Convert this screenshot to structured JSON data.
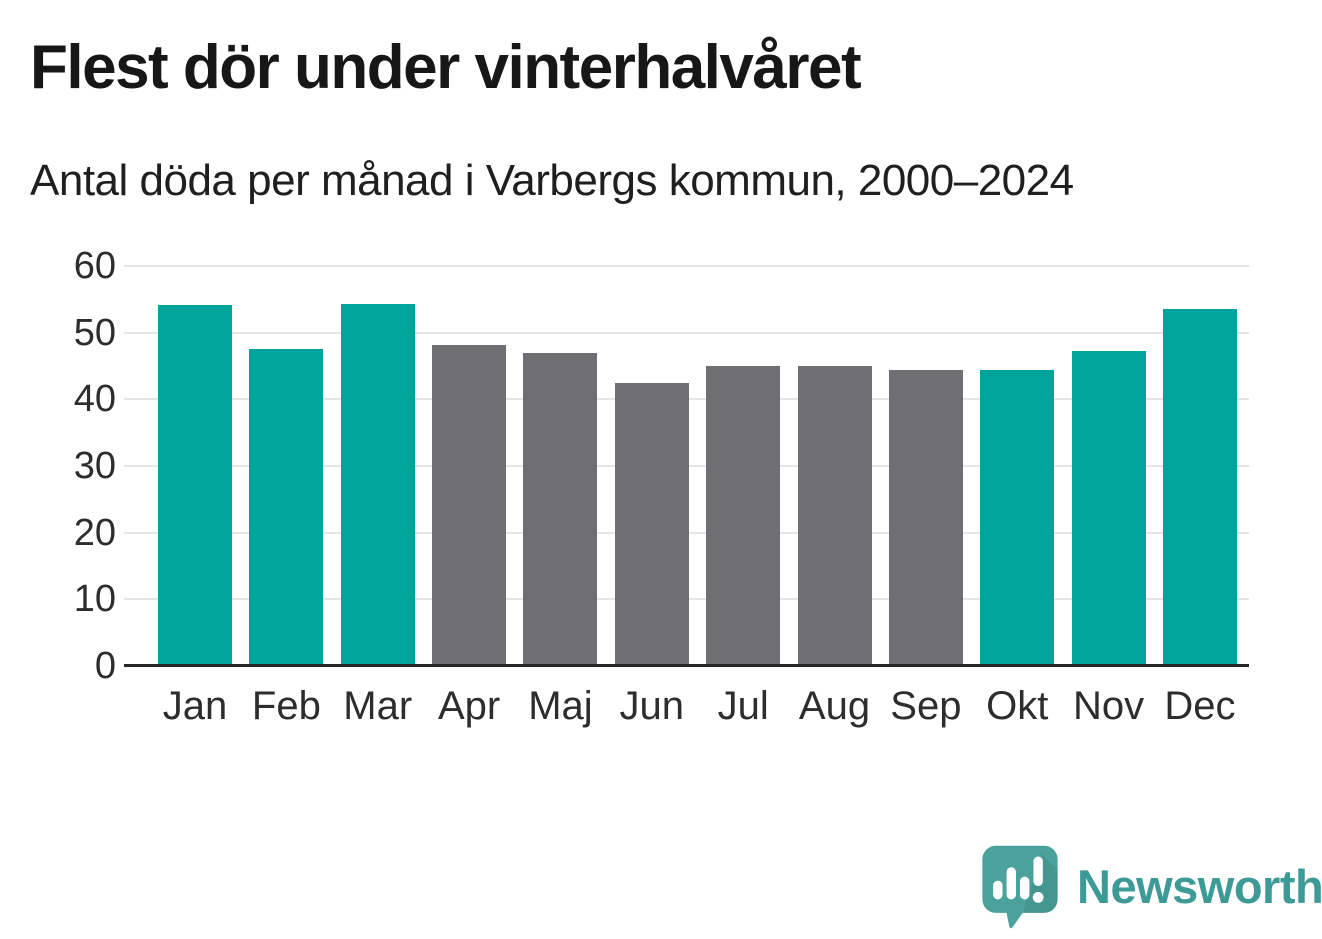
{
  "chart_data": {
    "type": "bar",
    "title": "Flest dör under vinterhalvåret",
    "subtitle": "Antal döda per månad i Varbergs kommun, 2000–2024",
    "categories": [
      "Jan",
      "Feb",
      "Mar",
      "Apr",
      "Maj",
      "Jun",
      "Jul",
      "Aug",
      "Sep",
      "Okt",
      "Nov",
      "Dec"
    ],
    "values": [
      54.1,
      47.5,
      54.3,
      48.2,
      46.9,
      42.4,
      45.0,
      45.0,
      44.4,
      44.4,
      47.2,
      53.5
    ],
    "bar_colors": [
      "#00a49a",
      "#00a49a",
      "#00a49a",
      "#6e6e73",
      "#6e6e73",
      "#6e6e73",
      "#6e6e73",
      "#6e6e73",
      "#6e6e73",
      "#00a49a",
      "#00a49a",
      "#00a49a"
    ],
    "highlight_color": "#00a49a",
    "default_color": "#6e6e73",
    "highlighted_categories": [
      "Jan",
      "Feb",
      "Mar",
      "Okt",
      "Nov",
      "Dec"
    ],
    "xlabel": "",
    "ylabel": "",
    "ylim": [
      0,
      60
    ],
    "yticks": [
      0,
      10,
      20,
      30,
      40,
      50,
      60
    ],
    "grid": true,
    "gridline_color": "#e5e5e5",
    "axis_line_color": "#262626",
    "legend": false
  },
  "footer": {
    "brand": "Newsworthy",
    "brand_color": "#3d9a96",
    "logo_icon": "speech-bubble-bar-chart-icon",
    "logo_color": "#4ba29c"
  }
}
